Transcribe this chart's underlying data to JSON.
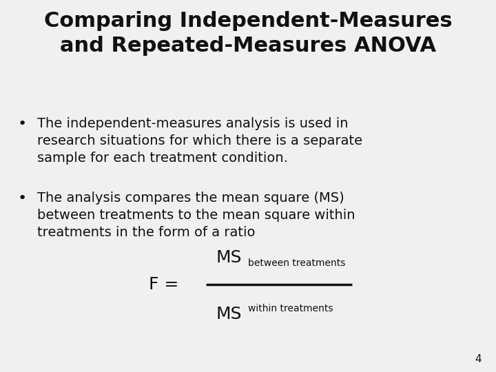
{
  "title_line1": "Comparing Independent-Measures",
  "title_line2": "and Repeated-Measures ANOVA",
  "bullet1_line1": "The independent-measures analysis is used in",
  "bullet1_line2": "research situations for which there is a separate",
  "bullet1_line3": "sample for each treatment condition.",
  "bullet2_line1": "The analysis compares the mean square (MS)",
  "bullet2_line2": "between treatments to the mean square within",
  "bullet2_line3": "treatments in the form of a ratio",
  "formula_f": "F = ",
  "formula_ms_num": "MS",
  "formula_ms_num_sub": "between treatments",
  "formula_ms_den": "MS",
  "formula_ms_den_sub": "within treatments",
  "page_number": "4",
  "bg_color": "#f0f0f0",
  "text_color": "#111111",
  "title_fontsize": 22,
  "body_fontsize": 14,
  "formula_ms_fontsize": 18,
  "formula_sub_fontsize": 10,
  "formula_f_fontsize": 18
}
